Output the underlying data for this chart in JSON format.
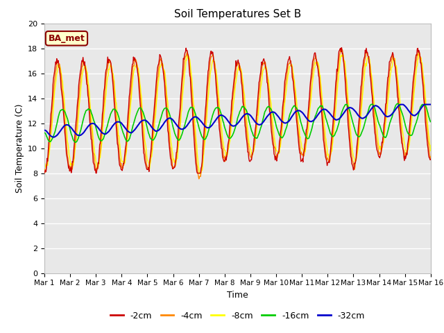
{
  "title": "Soil Temperatures Set B",
  "xlabel": "Time",
  "ylabel": "Soil Temperature (C)",
  "xlim": [
    0,
    15
  ],
  "ylim": [
    0,
    20
  ],
  "yticks": [
    0,
    2,
    4,
    6,
    8,
    10,
    12,
    14,
    16,
    18,
    20
  ],
  "xtick_labels": [
    "Mar 1",
    "Mar 2",
    "Mar 3",
    "Mar 4",
    "Mar 5",
    "Mar 6",
    "Mar 7",
    "Mar 8",
    "Mar 9",
    "Mar 10",
    "Mar 11",
    "Mar 12",
    "Mar 13",
    "Mar 14",
    "Mar 15",
    "Mar 16"
  ],
  "colors": {
    "-2cm": "#cc0000",
    "-4cm": "#ff8800",
    "-8cm": "#ffff00",
    "-16cm": "#00cc00",
    "-32cm": "#0000cc"
  },
  "background_color": "#e8e8e8"
}
